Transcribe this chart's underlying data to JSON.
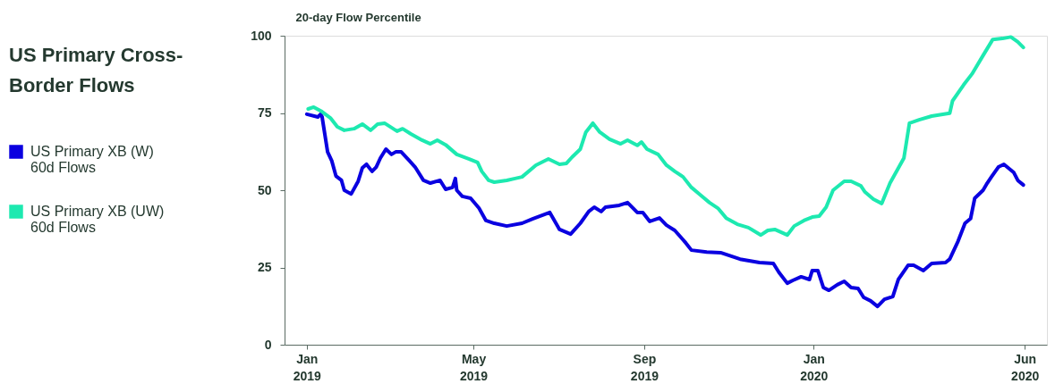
{
  "chart_data": {
    "type": "line",
    "title": "US Primary Cross-Border Flows",
    "ylabel": "20-day Flow Percentile",
    "xlim": [
      "2018-12-16",
      "2020-06-17"
    ],
    "ylim": [
      0,
      100
    ],
    "yticks": [
      0,
      25,
      50,
      75,
      100
    ],
    "xticks": [
      {
        "value": "2019-01-01",
        "label": "Jan\n2019"
      },
      {
        "value": "2019-05-01",
        "label": "May\n2019"
      },
      {
        "value": "2019-09-01",
        "label": "Sep\n2019"
      },
      {
        "value": "2020-01-01",
        "label": "Jan\n2020"
      },
      {
        "value": "2020-06-01",
        "label": "Jun\n2020"
      }
    ],
    "grid": false,
    "legend": "left",
    "marker": "none",
    "line_style": "solid",
    "series": [
      {
        "name": "US Primary XB (W) 60d Flows",
        "color": "#0a00e0",
        "x": [
          "2019-01-01",
          "2019-01-09",
          "2019-01-11",
          "2019-01-12",
          "2019-01-16",
          "2019-01-19",
          "2019-01-22",
          "2019-01-26",
          "2019-01-28",
          "2019-02-02",
          "2019-02-07",
          "2019-02-10",
          "2019-02-13",
          "2019-02-17",
          "2019-02-20",
          "2019-02-23",
          "2019-02-27",
          "2019-03-03",
          "2019-03-06",
          "2019-03-10",
          "2019-03-16",
          "2019-03-20",
          "2019-03-26",
          "2019-03-31",
          "2019-04-07",
          "2019-04-11",
          "2019-04-16",
          "2019-04-18",
          "2019-04-19",
          "2019-04-23",
          "2019-04-29",
          "2019-05-05",
          "2019-05-10",
          "2019-05-16",
          "2019-05-25",
          "2019-06-05",
          "2019-06-13",
          "2019-06-25",
          "2019-07-02",
          "2019-07-10",
          "2019-07-17",
          "2019-07-23",
          "2019-07-27",
          "2019-08-01",
          "2019-08-04",
          "2019-08-14",
          "2019-08-20",
          "2019-08-27",
          "2019-08-31",
          "2019-09-05",
          "2019-09-12",
          "2019-09-17",
          "2019-09-23",
          "2019-10-01",
          "2019-10-05",
          "2019-10-16",
          "2019-10-26",
          "2019-11-09",
          "2019-11-23",
          "2019-12-03",
          "2019-12-07",
          "2019-12-13",
          "2019-12-17",
          "2019-12-23",
          "2019-12-29",
          "2019-12-31",
          "2020-01-04",
          "2020-01-08",
          "2020-01-12",
          "2020-01-18",
          "2020-01-23",
          "2020-01-28",
          "2020-02-02",
          "2020-02-06",
          "2020-02-11",
          "2020-02-16",
          "2020-02-21",
          "2020-02-27",
          "2020-03-02",
          "2020-03-09",
          "2020-03-13",
          "2020-03-20",
          "2020-03-26",
          "2020-04-05",
          "2020-04-08",
          "2020-04-14",
          "2020-04-19",
          "2020-04-23",
          "2020-04-26",
          "2020-05-02",
          "2020-05-05",
          "2020-05-08",
          "2020-05-13",
          "2020-05-17",
          "2020-05-24",
          "2020-05-27",
          "2020-05-31"
        ],
        "values": [
          74.6,
          73.7,
          74.6,
          73.8,
          62.4,
          59.5,
          54.6,
          53.2,
          50,
          48.8,
          52.9,
          57.2,
          58.4,
          56.1,
          57.5,
          60.4,
          63.3,
          61.6,
          62.4,
          62.4,
          59.5,
          57.5,
          53.2,
          52.3,
          53.2,
          50.3,
          50.9,
          53.8,
          50,
          48,
          47.4,
          44.2,
          40.2,
          39.3,
          38.4,
          39.3,
          40.8,
          42.8,
          37.3,
          35.8,
          39.3,
          43.1,
          44.5,
          43.1,
          44.5,
          45.1,
          46,
          42.8,
          42.8,
          39.9,
          41,
          38.7,
          37,
          32.9,
          30.6,
          30,
          29.8,
          27.7,
          26.6,
          26.3,
          23.4,
          19.9,
          20.8,
          22,
          21.1,
          24,
          24,
          18.5,
          17.6,
          19.4,
          20.5,
          18.5,
          18.2,
          15.3,
          14.2,
          12.4,
          14.7,
          15.6,
          21.1,
          25.7,
          25.7,
          24,
          26.3,
          26.6,
          27.7,
          33.5,
          39.3,
          40.8,
          47.4,
          50,
          52.3,
          54.3,
          57.5,
          58.4,
          55.8,
          53.2,
          51.7
        ]
      },
      {
        "name": "US Primary XB (UW) 60d Flows",
        "color": "#1de9b0",
        "x": [
          "2019-01-02",
          "2019-01-06",
          "2019-01-12",
          "2019-01-18",
          "2019-01-23",
          "2019-01-28",
          "2019-02-04",
          "2019-02-10",
          "2019-02-16",
          "2019-02-21",
          "2019-02-26",
          "2019-03-07",
          "2019-03-11",
          "2019-03-17",
          "2019-03-25",
          "2019-03-31",
          "2019-04-05",
          "2019-04-11",
          "2019-04-19",
          "2019-04-28",
          "2019-05-04",
          "2019-05-07",
          "2019-05-12",
          "2019-05-16",
          "2019-05-25",
          "2019-05-31",
          "2019-06-05",
          "2019-06-15",
          "2019-06-24",
          "2019-07-02",
          "2019-07-07",
          "2019-07-11",
          "2019-07-17",
          "2019-07-21",
          "2019-07-26",
          "2019-07-31",
          "2019-08-07",
          "2019-08-15",
          "2019-08-20",
          "2019-08-27",
          "2019-08-30",
          "2019-09-03",
          "2019-09-11",
          "2019-09-17",
          "2019-09-23",
          "2019-09-29",
          "2019-10-05",
          "2019-10-11",
          "2019-10-18",
          "2019-10-24",
          "2019-10-30",
          "2019-11-07",
          "2019-11-15",
          "2019-11-24",
          "2019-11-29",
          "2019-12-04",
          "2019-12-13",
          "2019-12-18",
          "2019-12-25",
          "2019-12-31",
          "2020-01-05",
          "2020-01-10",
          "2020-01-15",
          "2020-01-23",
          "2020-01-28",
          "2020-02-04",
          "2020-02-07",
          "2020-02-13",
          "2020-02-19",
          "2020-02-25",
          "2020-03-06",
          "2020-03-10",
          "2020-03-17",
          "2020-03-26",
          "2020-04-08",
          "2020-04-10",
          "2020-04-18",
          "2020-04-24",
          "2020-05-02",
          "2020-05-09",
          "2020-05-16",
          "2020-05-22",
          "2020-05-27",
          "2020-05-31"
        ],
        "values": [
          76.3,
          76.9,
          75.4,
          73.4,
          70.5,
          69.4,
          69.9,
          71.4,
          69.4,
          71.4,
          71.7,
          69.1,
          69.9,
          68.2,
          66.2,
          65,
          66.2,
          64.7,
          61.6,
          60.1,
          59,
          56.1,
          53.2,
          52.6,
          53.2,
          53.8,
          54.3,
          58.1,
          60.1,
          58.4,
          58.7,
          60.7,
          63.3,
          68.8,
          71.7,
          68.8,
          66.5,
          65,
          66.2,
          64.5,
          65.6,
          63.3,
          61.6,
          58.1,
          56.1,
          54.3,
          50.9,
          48.6,
          46,
          44.2,
          41,
          39,
          37.9,
          35.5,
          37,
          37.3,
          35.5,
          38.4,
          40.2,
          41.3,
          41.6,
          44.5,
          50,
          52.9,
          52.9,
          51.4,
          49.4,
          47.1,
          45.7,
          52.3,
          60.4,
          71.7,
          72.8,
          74,
          74.9,
          78.9,
          84.1,
          87.6,
          93.6,
          98.8,
          99.1,
          99.6,
          98,
          96.2
        ]
      }
    ]
  }
}
